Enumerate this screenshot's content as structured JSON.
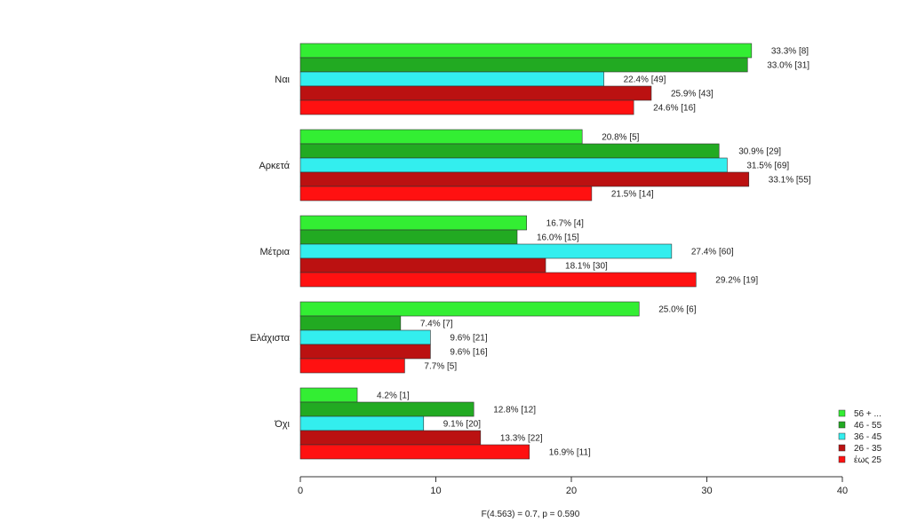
{
  "chart_data": {
    "type": "bar",
    "orientation": "horizontal",
    "categories": [
      "Ναι",
      "Αρκετά",
      "Μέτρια",
      "Ελάχιστα",
      "Όχι"
    ],
    "series": [
      {
        "name": "56 + ...",
        "color": "#33ee33",
        "values": [
          33.3,
          20.8,
          16.7,
          25.0,
          4.2
        ],
        "labels": [
          "33.3% [8]",
          "20.8% [5]",
          "16.7% [4]",
          "25.0% [6]",
          "4.2% [1]"
        ]
      },
      {
        "name": "46 - 55",
        "color": "#22aa22",
        "values": [
          33.0,
          30.9,
          16.0,
          7.4,
          12.8
        ],
        "labels": [
          "33.0% [31]",
          "30.9% [29]",
          "16.0% [15]",
          "7.4% [7]",
          "12.8% [12]"
        ]
      },
      {
        "name": "36 - 45",
        "color": "#33eeee",
        "values": [
          22.4,
          31.5,
          27.4,
          9.6,
          9.1
        ],
        "labels": [
          "22.4% [49]",
          "31.5% [69]",
          "27.4% [60]",
          "9.6% [21]",
          "9.1% [20]"
        ]
      },
      {
        "name": "26 - 35",
        "color": "#bb1111",
        "values": [
          25.9,
          33.1,
          18.1,
          9.6,
          13.3
        ],
        "labels": [
          "25.9% [43]",
          "33.1% [55]",
          "18.1% [30]",
          "9.6% [16]",
          "13.3% [22]"
        ]
      },
      {
        "name": "έως 25",
        "color": "#ff1111",
        "values": [
          24.6,
          21.5,
          29.2,
          7.7,
          16.9
        ],
        "labels": [
          "24.6% [16]",
          "21.5% [14]",
          "29.2% [19]",
          "7.7% [5]",
          "16.9% [11]"
        ]
      }
    ],
    "xlim": [
      0,
      40
    ],
    "xticks": [
      "0",
      "10",
      "20",
      "30",
      "40"
    ],
    "footnote": "F(4.563) = 0.7,    p = 0.590",
    "legend": "bottom-right",
    "grid": false
  }
}
